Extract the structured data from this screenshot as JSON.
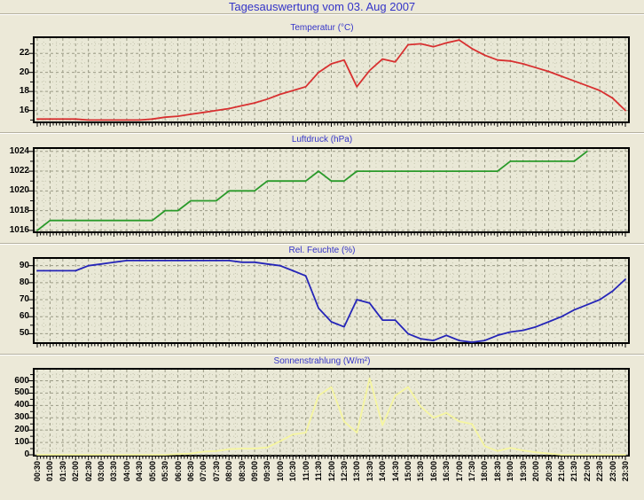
{
  "page": {
    "title": "Tagesauswertung vom 03. Aug 2007"
  },
  "chart_data": {
    "type": "line",
    "layout": "four stacked time-series panels, shared x axis, grid on, no legend",
    "x_axis": {
      "tick_interval": "30min",
      "label_rotation": -90
    },
    "categories": [
      "00:30",
      "01:00",
      "01:30",
      "02:00",
      "02:30",
      "03:00",
      "03:30",
      "04:00",
      "04:30",
      "05:00",
      "05:30",
      "06:00",
      "06:30",
      "07:00",
      "07:30",
      "08:00",
      "08:30",
      "09:00",
      "09:30",
      "10:00",
      "10:30",
      "11:00",
      "11:30",
      "12:00",
      "12:30",
      "13:00",
      "13:30",
      "14:00",
      "14:30",
      "15:00",
      "15:30",
      "16:00",
      "16:30",
      "17:00",
      "17:30",
      "18:00",
      "18:30",
      "19:00",
      "19:30",
      "20:00",
      "20:30",
      "21:00",
      "21:30",
      "22:00",
      "22:30",
      "23:00",
      "23:30"
    ],
    "charts": [
      {
        "title": "Temperatur (°C)",
        "color": "#d83030",
        "y_ticks": [
          16,
          18,
          20,
          22
        ],
        "y_min": 14.85,
        "y_max": 23.6,
        "values": [
          15.1,
          15.1,
          15.1,
          15.1,
          15.0,
          15.0,
          15.0,
          15.0,
          15.0,
          15.1,
          15.3,
          15.4,
          15.6,
          15.8,
          16.0,
          16.2,
          16.5,
          16.8,
          17.2,
          17.7,
          18.1,
          18.5,
          20.0,
          20.9,
          21.3,
          18.5,
          20.2,
          21.4,
          21.1,
          22.9,
          23.0,
          22.7,
          23.1,
          23.4,
          22.5,
          21.8,
          21.3,
          21.2,
          20.9,
          20.5,
          20.1,
          19.6,
          19.1,
          18.6,
          18.1,
          17.3,
          16.0
        ]
      },
      {
        "title": "Luftdruck (hPa)",
        "color": "#2a9a2a",
        "y_ticks": [
          1016,
          1018,
          1020,
          1022,
          1024
        ],
        "y_min": 1015.9,
        "y_max": 1024.25,
        "values": [
          1016,
          1017,
          1017,
          1017,
          1017,
          1017,
          1017,
          1017,
          1017,
          1017,
          1018,
          1018,
          1019,
          1019,
          1019,
          1020,
          1020,
          1020,
          1021,
          1021,
          1021,
          1021,
          1022,
          1021,
          1021,
          1022,
          1022,
          1022,
          1022,
          1022,
          1022,
          1022,
          1022,
          1022,
          1022,
          1022,
          1022,
          1023,
          1023,
          1023,
          1023,
          1023,
          1023,
          1024,
          null,
          null,
          null
        ]
      },
      {
        "title": "Rel. Feuchte (%)",
        "color": "#2525b8",
        "y_ticks": [
          50,
          60,
          70,
          80,
          90
        ],
        "y_min": 45,
        "y_max": 94,
        "values": [
          87,
          87,
          87,
          87,
          90,
          91,
          92,
          93,
          93,
          93,
          93,
          93,
          93,
          93,
          93,
          93,
          92,
          92,
          91,
          90,
          87,
          84,
          65,
          57,
          54,
          70,
          68,
          58,
          58,
          50,
          47,
          46,
          49,
          46,
          45,
          46,
          49,
          51,
          52,
          54,
          57,
          60,
          64,
          67,
          70,
          75,
          82
        ]
      },
      {
        "title": "Sonnenstrahlung (W/m²)",
        "color": "#f6f6a0",
        "y_ticks": [
          0,
          100,
          200,
          300,
          400,
          500,
          600
        ],
        "y_min": 0,
        "y_max": 690,
        "values": [
          0,
          0,
          0,
          0,
          0,
          0,
          0,
          0,
          0,
          0,
          0,
          5,
          10,
          25,
          30,
          45,
          50,
          50,
          60,
          110,
          165,
          180,
          480,
          550,
          270,
          180,
          620,
          240,
          480,
          550,
          390,
          300,
          340,
          270,
          250,
          70,
          30,
          55,
          35,
          20,
          10,
          0,
          0,
          0,
          0,
          0,
          0
        ]
      }
    ]
  }
}
